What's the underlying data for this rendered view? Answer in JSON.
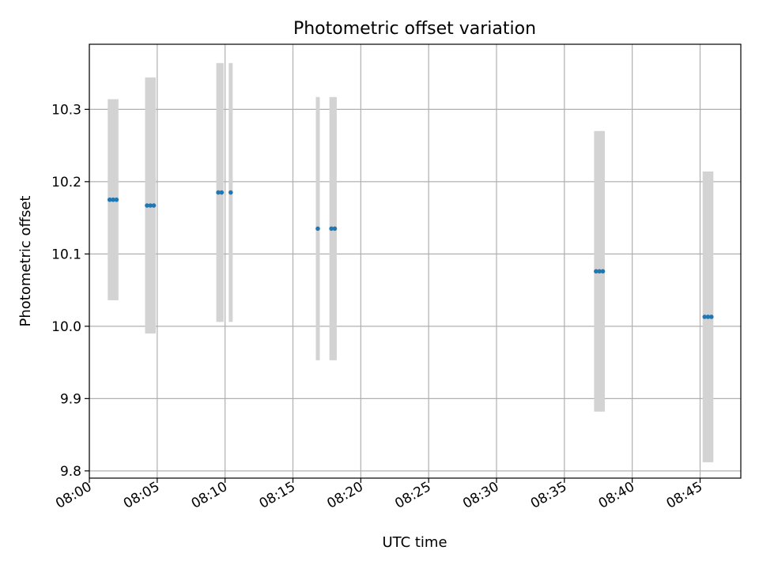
{
  "chart_data": {
    "type": "scatter",
    "title": "Photometric offset variation",
    "xlabel": "UTC time",
    "ylabel": "Photometric offset",
    "x_ticks": [
      "08:00",
      "08:05",
      "08:10",
      "08:15",
      "08:20",
      "08:25",
      "08:30",
      "08:35",
      "08:40",
      "08:45"
    ],
    "y_ticks": [
      "9.8",
      "9.9",
      "10.0",
      "10.1",
      "10.2",
      "10.3"
    ],
    "xlim": [
      "08:00:00",
      "08:48:00"
    ],
    "ylim": [
      9.79,
      10.39
    ],
    "grid": true,
    "legend": "none",
    "point_color": "#1f77b4",
    "errorbar_color": "#d3d3d3",
    "points": [
      {
        "t": "08:01:30",
        "y": 10.175,
        "yerr": 0.139
      },
      {
        "t": "08:01:45",
        "y": 10.175,
        "yerr": 0.139
      },
      {
        "t": "08:02:00",
        "y": 10.175,
        "yerr": 0.139
      },
      {
        "t": "08:04:15",
        "y": 10.167,
        "yerr": 0.177
      },
      {
        "t": "08:04:30",
        "y": 10.167,
        "yerr": 0.177
      },
      {
        "t": "08:04:45",
        "y": 10.167,
        "yerr": 0.177
      },
      {
        "t": "08:09:30",
        "y": 10.185,
        "yerr": 0.179
      },
      {
        "t": "08:09:45",
        "y": 10.185,
        "yerr": 0.179
      },
      {
        "t": "08:10:25",
        "y": 10.185,
        "yerr": 0.179
      },
      {
        "t": "08:16:50",
        "y": 10.135,
        "yerr": 0.182
      },
      {
        "t": "08:17:50",
        "y": 10.135,
        "yerr": 0.182
      },
      {
        "t": "08:18:05",
        "y": 10.135,
        "yerr": 0.182
      },
      {
        "t": "08:37:20",
        "y": 10.076,
        "yerr": 0.194
      },
      {
        "t": "08:37:35",
        "y": 10.076,
        "yerr": 0.194
      },
      {
        "t": "08:37:50",
        "y": 10.076,
        "yerr": 0.194
      },
      {
        "t": "08:45:20",
        "y": 10.013,
        "yerr": 0.201
      },
      {
        "t": "08:45:35",
        "y": 10.013,
        "yerr": 0.201
      },
      {
        "t": "08:45:50",
        "y": 10.013,
        "yerr": 0.201
      }
    ]
  }
}
